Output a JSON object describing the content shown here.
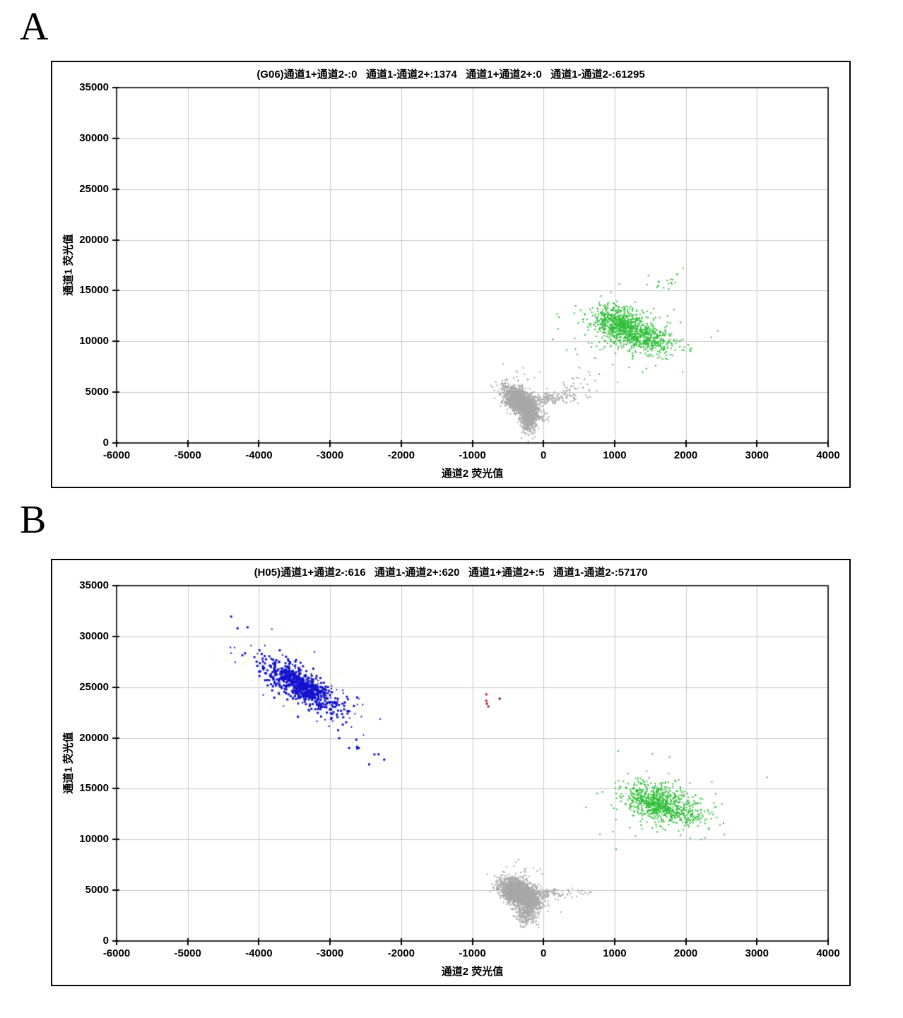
{
  "page": {
    "background": "#ffffff"
  },
  "colors": {
    "grid": "#c8c8c8",
    "frame": "#000000",
    "tick": "#000000",
    "green": "#2fbe38",
    "gray": "#a8a8a8",
    "blue": "#1313cf",
    "red": "#c41e2f",
    "pale_yellow": "#f4f1bf"
  },
  "panels": [
    {
      "letter": "A"
    },
    {
      "letter": "B"
    }
  ],
  "chart_data": [
    {
      "type": "scatter",
      "panel": "A",
      "title": "(G06)通道1+通道2-:0   通道1-通道2+:1374   通道1+通道2+:0   通道1-通道2-:61295",
      "well": "G06",
      "counts": {
        "ch1pos_ch2neg": 0,
        "ch1neg_ch2pos": 1374,
        "ch1pos_ch2pos": 0,
        "ch1neg_ch2neg": 61295
      },
      "xlabel": "通道2 荧光值",
      "ylabel": "通道1 荧光值",
      "xlim": [
        -6000,
        4000
      ],
      "ylim": [
        0,
        35000
      ],
      "xticks": [
        -6000,
        -5000,
        -4000,
        -3000,
        -2000,
        -1000,
        0,
        1000,
        2000,
        3000,
        4000
      ],
      "yticks": [
        0,
        5000,
        10000,
        15000,
        20000,
        25000,
        30000,
        35000
      ],
      "grid": true,
      "legend": "none",
      "clusters": [
        {
          "series": "ch1-ch2+ droplets",
          "color": "#2fbe38",
          "n": 650,
          "cx": 1060,
          "cy": 11700,
          "sx": 190,
          "sy": 850,
          "corr": -0.25,
          "size": 2
        },
        {
          "series": "ch1-ch2+ droplets",
          "color": "#2fbe38",
          "n": 430,
          "cx": 1430,
          "cy": 10300,
          "sx": 240,
          "sy": 750,
          "corr": -0.35,
          "size": 2
        },
        {
          "series": "ch1-ch2+ droplets",
          "color": "#2fbe38",
          "n": 90,
          "cx": 1250,
          "cy": 11300,
          "sx": 470,
          "sy": 1900,
          "corr": -0.1,
          "size": 2
        },
        {
          "series": "ch1-ch2+ droplets",
          "color": "#2fbe38",
          "n": 14,
          "cx": 1780,
          "cy": 15800,
          "sx": 190,
          "sy": 950,
          "corr": 0.85,
          "size": 2
        },
        {
          "series": "ch1-ch2+ droplets",
          "color": "#2fbe38",
          "n": 12,
          "cx": 640,
          "cy": 7800,
          "sx": 260,
          "sy": 1500,
          "corr": 0.6,
          "size": 2
        },
        {
          "series": "negative droplets",
          "color": "#a8a8a8",
          "n": 2000,
          "cx": -310,
          "cy": 3950,
          "sx": 120,
          "sy": 760,
          "corr": -0.6,
          "size": 2
        },
        {
          "series": "negative droplets",
          "color": "#a8a8a8",
          "n": 280,
          "cx": -215,
          "cy": 2100,
          "sx": 55,
          "sy": 620,
          "corr": -0.1,
          "size": 2
        },
        {
          "series": "negative droplets",
          "color": "#a8a8a8",
          "n": 170,
          "cx": 60,
          "cy": 4400,
          "sx": 230,
          "sy": 300,
          "corr": 0.3,
          "size": 2
        },
        {
          "series": "negative droplets",
          "color": "#a8a8a8",
          "n": 40,
          "cx": 420,
          "cy": 5400,
          "sx": 240,
          "sy": 650,
          "corr": 0.5,
          "size": 2
        },
        {
          "series": "negative droplets",
          "color": "#a8a8a8",
          "n": 18,
          "cx": -340,
          "cy": 6300,
          "sx": 130,
          "sy": 700,
          "corr": 0,
          "size": 2
        }
      ],
      "extra_points": [
        {
          "x": 2450,
          "y": 11050,
          "color": "#2fbe38",
          "size": 2
        },
        {
          "x": 2360,
          "y": 10400,
          "color": "#2fbe38",
          "size": 2
        },
        {
          "x": 1960,
          "y": 17200,
          "color": "#2fbe38",
          "size": 2
        },
        {
          "x": 1880,
          "y": 16600,
          "color": "#2fbe38",
          "size": 2
        }
      ]
    },
    {
      "type": "scatter",
      "panel": "B",
      "title": "(H05)通道1+通道2-:616   通道1-通道2+:620   通道1+通道2+:5   通道1-通道2-:57170",
      "well": "H05",
      "counts": {
        "ch1pos_ch2neg": 616,
        "ch1neg_ch2pos": 620,
        "ch1pos_ch2pos": 5,
        "ch1neg_ch2neg": 57170
      },
      "xlabel": "通道2 荧光值",
      "ylabel": "通道1 荧光值",
      "xlim": [
        -6000,
        4000
      ],
      "ylim": [
        0,
        35000
      ],
      "xticks": [
        -6000,
        -5000,
        -4000,
        -3000,
        -2000,
        -1000,
        0,
        1000,
        2000,
        3000,
        4000
      ],
      "yticks": [
        0,
        5000,
        10000,
        15000,
        20000,
        25000,
        30000,
        35000
      ],
      "grid": true,
      "legend": "none",
      "clusters": [
        {
          "series": "halo",
          "color": "#f4f1bf",
          "n": 210,
          "cx": -3400,
          "cy": 25100,
          "sx": 430,
          "sy": 1950,
          "corr": -0.75,
          "size": 2
        },
        {
          "series": "ch1+ch2- droplets",
          "color": "#1313cf",
          "n": 620,
          "cx": -3420,
          "cy": 25200,
          "sx": 280,
          "sy": 1300,
          "corr": -0.8,
          "size": 3
        },
        {
          "series": "ch1+ch2- droplets",
          "color": "#1313cf",
          "n": 80,
          "cx": -3380,
          "cy": 25000,
          "sx": 480,
          "sy": 2100,
          "corr": -0.78,
          "size": 2
        },
        {
          "series": "ch1+ch2- droplets",
          "color": "#1313cf",
          "n": 10,
          "cx": -2620,
          "cy": 19300,
          "sx": 170,
          "sy": 1000,
          "corr": -0.8,
          "size": 3
        },
        {
          "series": "ch1-ch2+ droplets",
          "color": "#2fbe38",
          "n": 600,
          "cx": 1560,
          "cy": 13800,
          "sx": 230,
          "sy": 900,
          "corr": -0.35,
          "size": 2
        },
        {
          "series": "ch1-ch2+ droplets",
          "color": "#2fbe38",
          "n": 270,
          "cx": 1810,
          "cy": 12700,
          "sx": 260,
          "sy": 800,
          "corr": -0.3,
          "size": 2
        },
        {
          "series": "ch1-ch2+ droplets",
          "color": "#2fbe38",
          "n": 80,
          "cx": 1620,
          "cy": 13400,
          "sx": 470,
          "sy": 1650,
          "corr": -0.2,
          "size": 2
        },
        {
          "series": "negative droplets",
          "color": "#a8a8a8",
          "n": 2300,
          "cx": -330,
          "cy": 4700,
          "sx": 130,
          "sy": 680,
          "corr": -0.5,
          "size": 2
        },
        {
          "series": "negative droplets",
          "color": "#a8a8a8",
          "n": 220,
          "cx": -240,
          "cy": 2700,
          "sx": 70,
          "sy": 600,
          "corr": -0.2,
          "size": 2
        },
        {
          "series": "negative droplets",
          "color": "#a8a8a8",
          "n": 150,
          "cx": 30,
          "cy": 4650,
          "sx": 240,
          "sy": 300,
          "corr": 0.2,
          "size": 2
        },
        {
          "series": "negative droplets",
          "color": "#a8a8a8",
          "n": 30,
          "cx": -330,
          "cy": 6400,
          "sx": 130,
          "sy": 750,
          "corr": 0,
          "size": 2
        }
      ],
      "extra_points": [
        {
          "x": -804,
          "y": 24290,
          "color": "#c41e2f",
          "size": 3
        },
        {
          "x": -616,
          "y": 23870,
          "color": "#6d1520",
          "size": 3
        },
        {
          "x": -804,
          "y": 23660,
          "color": "#c41e2f",
          "size": 3
        },
        {
          "x": -795,
          "y": 23380,
          "color": "#8c1a26",
          "size": 3
        },
        {
          "x": -775,
          "y": 23100,
          "color": "#b01c2c",
          "size": 3
        },
        {
          "x": -4390,
          "y": 31950,
          "color": "#1313cf",
          "size": 3
        },
        {
          "x": -4300,
          "y": 30800,
          "color": "#1313cf",
          "size": 3
        },
        {
          "x": -4160,
          "y": 30900,
          "color": "#1313cf",
          "size": 3
        },
        {
          "x": -2450,
          "y": 17400,
          "color": "#1313cf",
          "size": 3
        },
        {
          "x": -2380,
          "y": 17300,
          "color": "#f4f1bf",
          "size": 2
        },
        {
          "x": 650,
          "y": 4800,
          "color": "#a8a8a8",
          "size": 2
        },
        {
          "x": 560,
          "y": 4600,
          "color": "#a8a8a8",
          "size": 2
        },
        {
          "x": 480,
          "y": 5000,
          "color": "#a8a8a8",
          "size": 2
        },
        {
          "x": 1050,
          "y": 18700,
          "color": "#2fbe38",
          "size": 2
        },
        {
          "x": 2420,
          "y": 14500,
          "color": "#2fbe38",
          "size": 2
        }
      ]
    }
  ]
}
